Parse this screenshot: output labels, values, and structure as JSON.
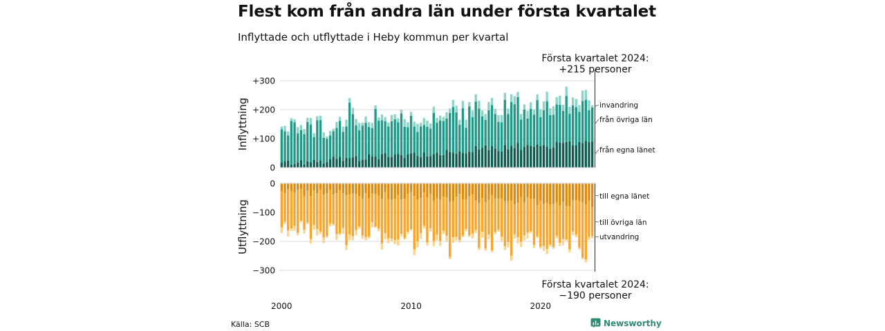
{
  "title": "Flest kom från andra län under första kvartalet",
  "subtitle": "Inflyttade och utflyttade i Heby kommun per kvartal",
  "source": "Källa: SCB",
  "brand": "Newsworthy",
  "colors": {
    "in_same": "#0e5c50",
    "in_other": "#1f9a88",
    "in_abroad": "#8ed3c8",
    "out_same": "#de8a0c",
    "out_other": "#f9a42a",
    "out_abroad": "#fcd48c",
    "brand": "#2f8a78"
  },
  "chart_data": [
    {
      "type": "bar",
      "stacked": true,
      "ylabel": "Inflyttning",
      "ylim": [
        0,
        310
      ],
      "yticks": [
        0,
        100,
        200,
        300
      ],
      "ytick_labels": [
        "0",
        "+100",
        "+200",
        "+300"
      ],
      "annotation": [
        "Första kvartalet 2024:",
        "+215 personer"
      ],
      "series_labels": [
        "invandring",
        "från övriga län",
        "från egna länet"
      ]
    },
    {
      "type": "bar",
      "stacked": true,
      "ylabel": "Utflyttning",
      "ylim": [
        -310,
        0
      ],
      "yticks": [
        0,
        -100,
        -200,
        -300
      ],
      "ytick_labels": [
        "0",
        "−100",
        "−200",
        "−300"
      ],
      "annotation": [
        "Första kvartalet 2024:",
        "−190 personer"
      ],
      "series_labels": [
        "till egna länet",
        "till övriga län",
        "utvandring"
      ]
    }
  ],
  "x_axis": {
    "ticks": [
      2000,
      2010,
      2020
    ],
    "tick_labels": [
      "2000",
      "2010",
      "2020"
    ],
    "start_year": 2000,
    "quarters": 97
  }
}
